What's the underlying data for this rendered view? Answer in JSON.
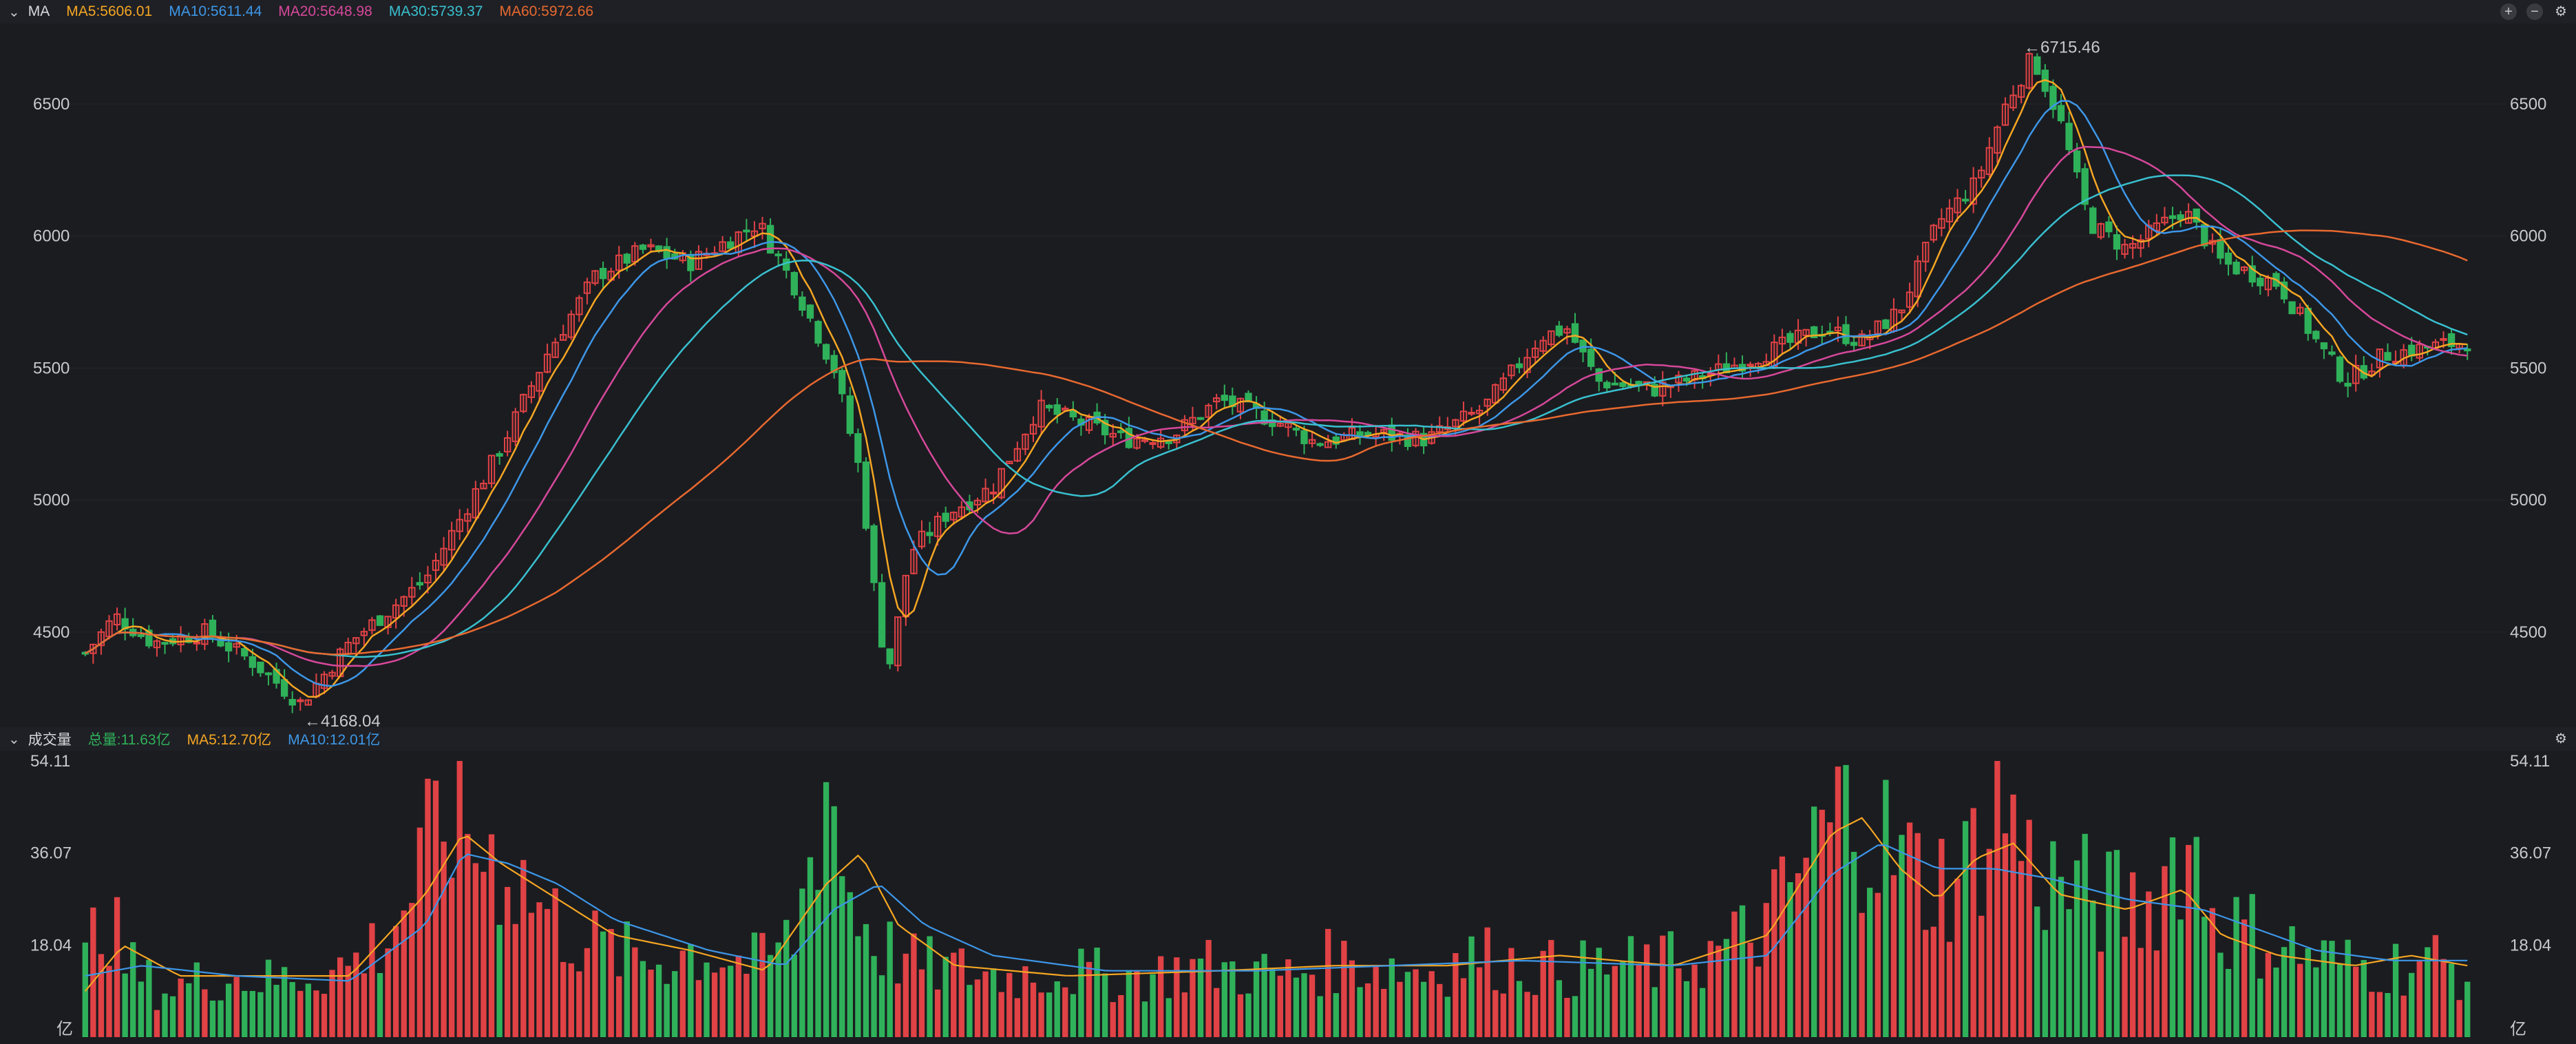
{
  "price_panel": {
    "title": "MA",
    "legend": [
      {
        "text": "MA5:5606.01",
        "color": "#f5a623"
      },
      {
        "text": "MA10:5611.44",
        "color": "#3d97e8"
      },
      {
        "text": "MA20:5648.98",
        "color": "#d6489a"
      },
      {
        "text": "MA30:5739.37",
        "color": "#39c0cf"
      },
      {
        "text": "MA60:5972.66",
        "color": "#e8692f"
      }
    ],
    "high_label": "←6715.46",
    "low_label": "←4168.04",
    "controls": {
      "add": "+",
      "remove": "−",
      "settings": "⚙"
    }
  },
  "volume_panel": {
    "title": "成交量",
    "legend": [
      {
        "text": "总量:11.63亿",
        "color": "#2fb15a"
      },
      {
        "text": "MA5:12.70亿",
        "color": "#f5a623"
      },
      {
        "text": "MA10:12.01亿",
        "color": "#3d97e8"
      }
    ],
    "unit": "亿",
    "settings": "⚙"
  },
  "colors": {
    "up": "#e04245",
    "down": "#2fb15a",
    "bg": "#1b1c20"
  },
  "chart_data": [
    {
      "type": "candlestick",
      "ylim": [
        4150,
        6800
      ],
      "yticks": [
        4500,
        5000,
        5500,
        6000,
        6500
      ],
      "ytick_labels": [
        "4500",
        "5000",
        "5500",
        "6000",
        "6500"
      ],
      "n_candles": 300,
      "annotated_high": 6715.46,
      "annotated_low": 4168.04,
      "close_anchors": [
        [
          0,
          4420
        ],
        [
          8,
          4560
        ],
        [
          18,
          4460
        ],
        [
          32,
          4500
        ],
        [
          45,
          4380
        ],
        [
          57,
          4230
        ],
        [
          70,
          4460
        ],
        [
          90,
          4700
        ],
        [
          110,
          5200
        ],
        [
          122,
          5550
        ],
        [
          135,
          5850
        ],
        [
          148,
          5950
        ],
        [
          160,
          5900
        ],
        [
          178,
          6050
        ],
        [
          188,
          5800
        ],
        [
          198,
          5500
        ],
        [
          205,
          5100
        ],
        [
          210,
          4500
        ],
        [
          213,
          4380
        ],
        [
          218,
          4800
        ],
        [
          228,
          4950
        ],
        [
          240,
          5050
        ],
        [
          252,
          5350
        ],
        [
          262,
          5300
        ],
        [
          275,
          5230
        ],
        [
          288,
          5250
        ],
        [
          300,
          5380
        ],
        [
          315,
          5300
        ],
        [
          325,
          5220
        ],
        [
          340,
          5250
        ],
        [
          355,
          5230
        ],
        [
          370,
          5350
        ],
        [
          385,
          5620
        ],
        [
          392,
          5650
        ],
        [
          400,
          5450
        ],
        [
          415,
          5420
        ],
        [
          430,
          5480
        ],
        [
          445,
          5560
        ],
        [
          460,
          5650
        ],
        [
          470,
          5600
        ],
        [
          480,
          5720
        ],
        [
          490,
          6050
        ],
        [
          500,
          6200
        ],
        [
          508,
          6500
        ],
        [
          515,
          6680
        ],
        [
          522,
          6450
        ],
        [
          530,
          6050
        ],
        [
          540,
          5950
        ],
        [
          555,
          6100
        ],
        [
          565,
          5900
        ],
        [
          580,
          5820
        ],
        [
          592,
          5560
        ],
        [
          598,
          5450
        ],
        [
          608,
          5550
        ],
        [
          620,
          5580
        ],
        [
          630,
          5600
        ]
      ],
      "x_index_max": 630
    },
    {
      "type": "bar",
      "ylim": [
        0,
        54.11
      ],
      "yticks": [
        18.04,
        36.07,
        54.11
      ],
      "ytick_labels": [
        "18.04",
        "36.07",
        "54.11"
      ],
      "unit": "亿",
      "volume_anchors": [
        [
          0,
          14
        ],
        [
          5,
          28
        ],
        [
          10,
          15
        ],
        [
          20,
          9
        ],
        [
          35,
          12
        ],
        [
          50,
          11
        ],
        [
          70,
          14
        ],
        [
          80,
          20
        ],
        [
          90,
          34
        ],
        [
          96,
          46
        ],
        [
          103,
          38
        ],
        [
          112,
          34
        ],
        [
          122,
          24
        ],
        [
          132,
          19
        ],
        [
          142,
          16
        ],
        [
          150,
          15
        ],
        [
          160,
          17
        ],
        [
          168,
          16
        ],
        [
          178,
          14
        ],
        [
          188,
          20
        ],
        [
          196,
          53
        ],
        [
          202,
          28
        ],
        [
          210,
          18
        ],
        [
          220,
          14
        ],
        [
          232,
          13
        ],
        [
          245,
          12
        ],
        [
          258,
          13
        ],
        [
          270,
          12
        ],
        [
          282,
          12
        ],
        [
          295,
          14
        ],
        [
          305,
          13
        ],
        [
          318,
          12
        ],
        [
          330,
          15
        ],
        [
          342,
          14
        ],
        [
          355,
          13
        ],
        [
          368,
          16
        ],
        [
          380,
          14
        ],
        [
          392,
          13
        ],
        [
          402,
          14
        ],
        [
          415,
          14
        ],
        [
          430,
          16
        ],
        [
          445,
          22
        ],
        [
          460,
          40
        ],
        [
          468,
          46
        ],
        [
          478,
          36
        ],
        [
          488,
          30
        ],
        [
          498,
          33
        ],
        [
          506,
          50
        ],
        [
          514,
          34
        ],
        [
          522,
          30
        ],
        [
          532,
          27
        ],
        [
          545,
          25
        ],
        [
          555,
          40
        ],
        [
          565,
          22
        ],
        [
          575,
          20
        ],
        [
          588,
          16
        ],
        [
          600,
          14
        ],
        [
          612,
          14
        ],
        [
          622,
          15
        ],
        [
          630,
          12
        ]
      ],
      "ma5_anchors": [
        [
          0,
          9
        ],
        [
          10,
          18
        ],
        [
          25,
          12
        ],
        [
          45,
          12
        ],
        [
          70,
          12
        ],
        [
          90,
          28
        ],
        [
          100,
          40
        ],
        [
          110,
          34
        ],
        [
          125,
          27
        ],
        [
          140,
          20
        ],
        [
          160,
          17
        ],
        [
          180,
          13
        ],
        [
          196,
          30
        ],
        [
          205,
          36
        ],
        [
          215,
          22
        ],
        [
          230,
          14
        ],
        [
          260,
          12
        ],
        [
          300,
          13
        ],
        [
          330,
          14
        ],
        [
          360,
          14
        ],
        [
          390,
          16
        ],
        [
          420,
          14
        ],
        [
          445,
          20
        ],
        [
          462,
          40
        ],
        [
          470,
          43
        ],
        [
          480,
          33
        ],
        [
          490,
          27
        ],
        [
          500,
          35
        ],
        [
          510,
          38
        ],
        [
          522,
          28
        ],
        [
          540,
          25
        ],
        [
          555,
          29
        ],
        [
          565,
          20
        ],
        [
          580,
          16
        ],
        [
          600,
          14
        ],
        [
          615,
          16
        ],
        [
          630,
          14
        ]
      ],
      "ma10_anchors": [
        [
          0,
          12
        ],
        [
          15,
          14
        ],
        [
          40,
          12
        ],
        [
          70,
          11
        ],
        [
          90,
          22
        ],
        [
          100,
          36
        ],
        [
          112,
          34
        ],
        [
          125,
          30
        ],
        [
          140,
          23
        ],
        [
          165,
          17
        ],
        [
          185,
          14
        ],
        [
          198,
          25
        ],
        [
          210,
          30
        ],
        [
          222,
          22
        ],
        [
          240,
          16
        ],
        [
          270,
          13
        ],
        [
          310,
          13
        ],
        [
          345,
          14
        ],
        [
          380,
          15
        ],
        [
          420,
          14
        ],
        [
          445,
          16
        ],
        [
          462,
          32
        ],
        [
          475,
          38
        ],
        [
          490,
          33
        ],
        [
          505,
          33
        ],
        [
          520,
          31
        ],
        [
          540,
          27
        ],
        [
          560,
          25
        ],
        [
          575,
          21
        ],
        [
          590,
          17
        ],
        [
          610,
          15
        ],
        [
          630,
          15
        ]
      ]
    }
  ]
}
